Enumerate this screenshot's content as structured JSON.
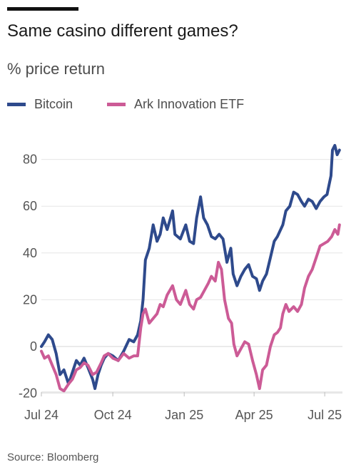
{
  "title": "Same casino different games?",
  "subtitle": "% price return",
  "source": "Source: Bloomberg",
  "chart_data": {
    "type": "line",
    "xlabel": "",
    "ylabel": "% price return",
    "ylim": [
      -20,
      86
    ],
    "xlim": [
      "2024-07-01",
      "2025-07-31"
    ],
    "grid": true,
    "legend_position": "top-left",
    "y_ticks": [
      80,
      60,
      40,
      20,
      0,
      -20
    ],
    "x_tick_labels": [
      {
        "label": "Jul 24",
        "date": "2024-07-01"
      },
      {
        "label": "Oct 24",
        "date": "2024-10-01"
      },
      {
        "label": "Jan 25",
        "date": "2025-01-01"
      },
      {
        "label": "Apr 25",
        "date": "2025-04-01"
      },
      {
        "label": "Jul 25",
        "date": "2025-07-01"
      }
    ],
    "series": [
      {
        "name": "Bitcoin",
        "color": "#2e4a8c",
        "points": [
          [
            "2024-07-01",
            0
          ],
          [
            "2024-07-05",
            2
          ],
          [
            "2024-07-10",
            5
          ],
          [
            "2024-07-15",
            3
          ],
          [
            "2024-07-20",
            -3
          ],
          [
            "2024-07-25",
            -12
          ],
          [
            "2024-07-30",
            -10
          ],
          [
            "2024-08-05",
            -16
          ],
          [
            "2024-08-10",
            -11
          ],
          [
            "2024-08-15",
            -6
          ],
          [
            "2024-08-20",
            -8
          ],
          [
            "2024-08-25",
            -5
          ],
          [
            "2024-08-30",
            -9
          ],
          [
            "2024-09-05",
            -14
          ],
          [
            "2024-09-08",
            -18
          ],
          [
            "2024-09-12",
            -12
          ],
          [
            "2024-09-16",
            -8
          ],
          [
            "2024-09-20",
            -5
          ],
          [
            "2024-09-25",
            -3
          ],
          [
            "2024-10-01",
            -4
          ],
          [
            "2024-10-08",
            -6
          ],
          [
            "2024-10-15",
            -2
          ],
          [
            "2024-10-22",
            3
          ],
          [
            "2024-10-28",
            2
          ],
          [
            "2024-11-02",
            5
          ],
          [
            "2024-11-06",
            11
          ],
          [
            "2024-11-09",
            20
          ],
          [
            "2024-11-12",
            37
          ],
          [
            "2024-11-17",
            42
          ],
          [
            "2024-11-22",
            52
          ],
          [
            "2024-11-27",
            45
          ],
          [
            "2024-12-01",
            48
          ],
          [
            "2024-12-05",
            55
          ],
          [
            "2024-12-10",
            50
          ],
          [
            "2024-12-17",
            58
          ],
          [
            "2024-12-20",
            48
          ],
          [
            "2024-12-27",
            46
          ],
          [
            "2025-01-03",
            52
          ],
          [
            "2025-01-08",
            45
          ],
          [
            "2025-01-13",
            44
          ],
          [
            "2025-01-17",
            55
          ],
          [
            "2025-01-22",
            64
          ],
          [
            "2025-01-26",
            55
          ],
          [
            "2025-01-31",
            52
          ],
          [
            "2025-02-05",
            47
          ],
          [
            "2025-02-10",
            46
          ],
          [
            "2025-02-15",
            48
          ],
          [
            "2025-02-20",
            46
          ],
          [
            "2025-02-25",
            36
          ],
          [
            "2025-03-02",
            42
          ],
          [
            "2025-03-05",
            31
          ],
          [
            "2025-03-10",
            26
          ],
          [
            "2025-03-15",
            30
          ],
          [
            "2025-03-20",
            33
          ],
          [
            "2025-03-25",
            35
          ],
          [
            "2025-03-30",
            30
          ],
          [
            "2025-04-04",
            29
          ],
          [
            "2025-04-08",
            24
          ],
          [
            "2025-04-12",
            28
          ],
          [
            "2025-04-17",
            31
          ],
          [
            "2025-04-22",
            38
          ],
          [
            "2025-04-27",
            45
          ],
          [
            "2025-05-01",
            47
          ],
          [
            "2025-05-08",
            52
          ],
          [
            "2025-05-12",
            58
          ],
          [
            "2025-05-17",
            60
          ],
          [
            "2025-05-22",
            66
          ],
          [
            "2025-05-27",
            65
          ],
          [
            "2025-06-01",
            62
          ],
          [
            "2025-06-05",
            60
          ],
          [
            "2025-06-10",
            63
          ],
          [
            "2025-06-15",
            62
          ],
          [
            "2025-06-20",
            59
          ],
          [
            "2025-06-25",
            62
          ],
          [
            "2025-06-30",
            64
          ],
          [
            "2025-07-04",
            65
          ],
          [
            "2025-07-09",
            73
          ],
          [
            "2025-07-11",
            84
          ],
          [
            "2025-07-14",
            86
          ],
          [
            "2025-07-17",
            82
          ],
          [
            "2025-07-20",
            84
          ]
        ]
      },
      {
        "name": "Ark Innovation ETF",
        "color": "#cc5b96",
        "points": [
          [
            "2024-07-01",
            -2
          ],
          [
            "2024-07-05",
            -5
          ],
          [
            "2024-07-10",
            -4
          ],
          [
            "2024-07-15",
            -8
          ],
          [
            "2024-07-20",
            -12
          ],
          [
            "2024-07-25",
            -18
          ],
          [
            "2024-07-30",
            -19
          ],
          [
            "2024-08-05",
            -16
          ],
          [
            "2024-08-10",
            -14
          ],
          [
            "2024-08-15",
            -10
          ],
          [
            "2024-08-20",
            -9
          ],
          [
            "2024-08-25",
            -7
          ],
          [
            "2024-08-30",
            -8
          ],
          [
            "2024-09-05",
            -12
          ],
          [
            "2024-09-10",
            -11
          ],
          [
            "2024-09-16",
            -7
          ],
          [
            "2024-09-20",
            -4
          ],
          [
            "2024-09-25",
            -3
          ],
          [
            "2024-10-01",
            -5
          ],
          [
            "2024-10-08",
            -6
          ],
          [
            "2024-10-15",
            -3
          ],
          [
            "2024-10-22",
            -5
          ],
          [
            "2024-10-28",
            -4
          ],
          [
            "2024-11-02",
            -4
          ],
          [
            "2024-11-06",
            8
          ],
          [
            "2024-11-09",
            14
          ],
          [
            "2024-11-12",
            16
          ],
          [
            "2024-11-17",
            10
          ],
          [
            "2024-11-22",
            12
          ],
          [
            "2024-11-27",
            14
          ],
          [
            "2024-12-01",
            18
          ],
          [
            "2024-12-05",
            17
          ],
          [
            "2024-12-10",
            22
          ],
          [
            "2024-12-17",
            26
          ],
          [
            "2024-12-22",
            20
          ],
          [
            "2024-12-27",
            18
          ],
          [
            "2025-01-03",
            24
          ],
          [
            "2025-01-08",
            18
          ],
          [
            "2025-01-13",
            16
          ],
          [
            "2025-01-17",
            20
          ],
          [
            "2025-01-22",
            21
          ],
          [
            "2025-01-27",
            24
          ],
          [
            "2025-02-01",
            27
          ],
          [
            "2025-02-05",
            30
          ],
          [
            "2025-02-10",
            28
          ],
          [
            "2025-02-14",
            36
          ],
          [
            "2025-02-18",
            33
          ],
          [
            "2025-02-22",
            20
          ],
          [
            "2025-02-27",
            12
          ],
          [
            "2025-03-03",
            10
          ],
          [
            "2025-03-06",
            1
          ],
          [
            "2025-03-10",
            -4
          ],
          [
            "2025-03-15",
            -1
          ],
          [
            "2025-03-20",
            2
          ],
          [
            "2025-03-25",
            1
          ],
          [
            "2025-03-30",
            -6
          ],
          [
            "2025-04-04",
            -12
          ],
          [
            "2025-04-08",
            -18
          ],
          [
            "2025-04-12",
            -10
          ],
          [
            "2025-04-17",
            -8
          ],
          [
            "2025-04-22",
            0
          ],
          [
            "2025-04-27",
            5
          ],
          [
            "2025-05-01",
            6
          ],
          [
            "2025-05-05",
            8
          ],
          [
            "2025-05-08",
            14
          ],
          [
            "2025-05-12",
            18
          ],
          [
            "2025-05-16",
            15
          ],
          [
            "2025-05-22",
            17
          ],
          [
            "2025-05-27",
            15
          ],
          [
            "2025-06-01",
            18
          ],
          [
            "2025-06-05",
            25
          ],
          [
            "2025-06-10",
            30
          ],
          [
            "2025-06-15",
            33
          ],
          [
            "2025-06-20",
            38
          ],
          [
            "2025-06-25",
            43
          ],
          [
            "2025-06-30",
            44
          ],
          [
            "2025-07-05",
            45
          ],
          [
            "2025-07-10",
            47
          ],
          [
            "2025-07-14",
            50
          ],
          [
            "2025-07-18",
            48
          ],
          [
            "2025-07-20",
            52
          ]
        ]
      }
    ]
  }
}
